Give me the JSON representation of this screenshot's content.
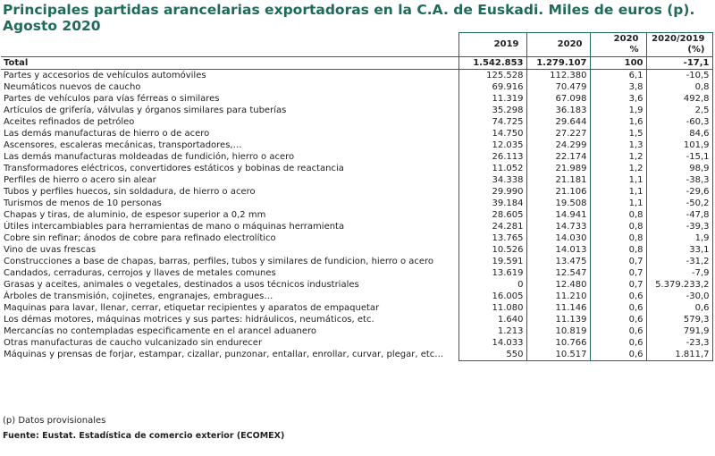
{
  "title": "Principales partidas arancelarias exportadoras en la C.A. de Euskadi. Miles de euros (p). Agosto 2020",
  "headers": [
    "2019",
    "2020",
    "2020\n%",
    "2020/2019\n(%)"
  ],
  "rows": [
    [
      "Total",
      "1.542.853",
      "1.279.107",
      "100",
      "-17,1"
    ],
    [
      "Partes y accesorios de vehículos automóviles",
      "125.528",
      "112.380",
      "6,1",
      "-10,5"
    ],
    [
      "Neumáticos nuevos de caucho",
      "69.916",
      "70.479",
      "3,8",
      "0,8"
    ],
    [
      "Partes de vehículos para vías férreas o similares",
      "11.319",
      "67.098",
      "3,6",
      "492,8"
    ],
    [
      "Artículos de grifería, válvulas y órganos similares para tuberías",
      "35.298",
      "36.183",
      "1,9",
      "2,5"
    ],
    [
      "Aceites refinados de petróleo",
      "74.725",
      "29.644",
      "1,6",
      "-60,3"
    ],
    [
      "Las demás manufacturas de hierro o de acero",
      "14.750",
      "27.227",
      "1,5",
      "84,6"
    ],
    [
      "Ascensores, escaleras mecánicas, transportadores,…",
      "12.035",
      "24.299",
      "1,3",
      "101,9"
    ],
    [
      "Las demás manufacturas moldeadas de fundición, hierro o acero",
      "26.113",
      "22.174",
      "1,2",
      "-15,1"
    ],
    [
      "Transformadores eléctricos, convertidores estáticos y bobinas de reactancia",
      "11.052",
      "21.989",
      "1,2",
      "98,9"
    ],
    [
      "Perfiles de hierro o acero sin alear",
      "34.338",
      "21.181",
      "1,1",
      "-38,3"
    ],
    [
      "Tubos y perfiles huecos, sin soldadura, de hierro o acero",
      "29.990",
      "21.106",
      "1,1",
      "-29,6"
    ],
    [
      "Turismos de menos de  10 personas",
      "39.184",
      "19.508",
      "1,1",
      "-50,2"
    ],
    [
      "Chapas y tiras, de aluminio, de espesor superior a 0,2 mm",
      "28.605",
      "14.941",
      "0,8",
      "-47,8"
    ],
    [
      "Útiles intercambiables para herramientas de mano o máquinas herramienta",
      "24.281",
      "14.733",
      "0,8",
      "-39,3"
    ],
    [
      "Cobre sin refinar; ánodos de cobre para refinado electrolítico",
      "13.765",
      "14.030",
      "0,8",
      "1,9"
    ],
    [
      "Vino de uvas frescas",
      "10.526",
      "14.013",
      "0,8",
      "33,1"
    ],
    [
      "Construcciones a base de chapas, barras, perfiles, tubos y similares de fundicion, hierro o acero",
      "19.591",
      "13.475",
      "0,7",
      "-31,2"
    ],
    [
      "Candados, cerraduras, cerrojos y llaves de metales comunes",
      "13.619",
      "12.547",
      "0,7",
      "-7,9"
    ],
    [
      "Grasas y aceites, animales o vegetales, destinados a usos técnicos  industriales",
      "0",
      "12.480",
      "0,7",
      "5.379.233,2"
    ],
    [
      "Árboles de transmisión, cojinetes, engranajes, embragues…",
      "16.005",
      "11.210",
      "0,6",
      "-30,0"
    ],
    [
      "Maquinas para lavar, llenar, cerrar, etiquetar recipientes  y aparatos de empaquetar",
      "11.080",
      "11.146",
      "0,6",
      "0,6"
    ],
    [
      "Los démas motores, máquinas motrices y sus partes: hidráulicos, neumáticos, etc.",
      "1.640",
      "11.139",
      "0,6",
      "579,3"
    ],
    [
      "Mercancías no contempladas especificamente en el arancel aduanero",
      "1.213",
      "10.819",
      "0,6",
      "791,9"
    ],
    [
      "Otras manufacturas de caucho vulcanizado sin endurecer",
      "14.033",
      "10.766",
      "0,6",
      "-23,3"
    ],
    [
      "Máquinas y prensas de forjar, estampar, cizallar,  punzonar, entallar, enrollar, curvar, plegar, etc…",
      "550",
      "10.517",
      "0,6",
      "1.811,7"
    ]
  ],
  "note": "(p) Datos provisionales",
  "source": "Fuente: Eustat. Estadística de comercio exterior (ECOMEX)",
  "colors": {
    "accent": "#1f6b5b"
  }
}
